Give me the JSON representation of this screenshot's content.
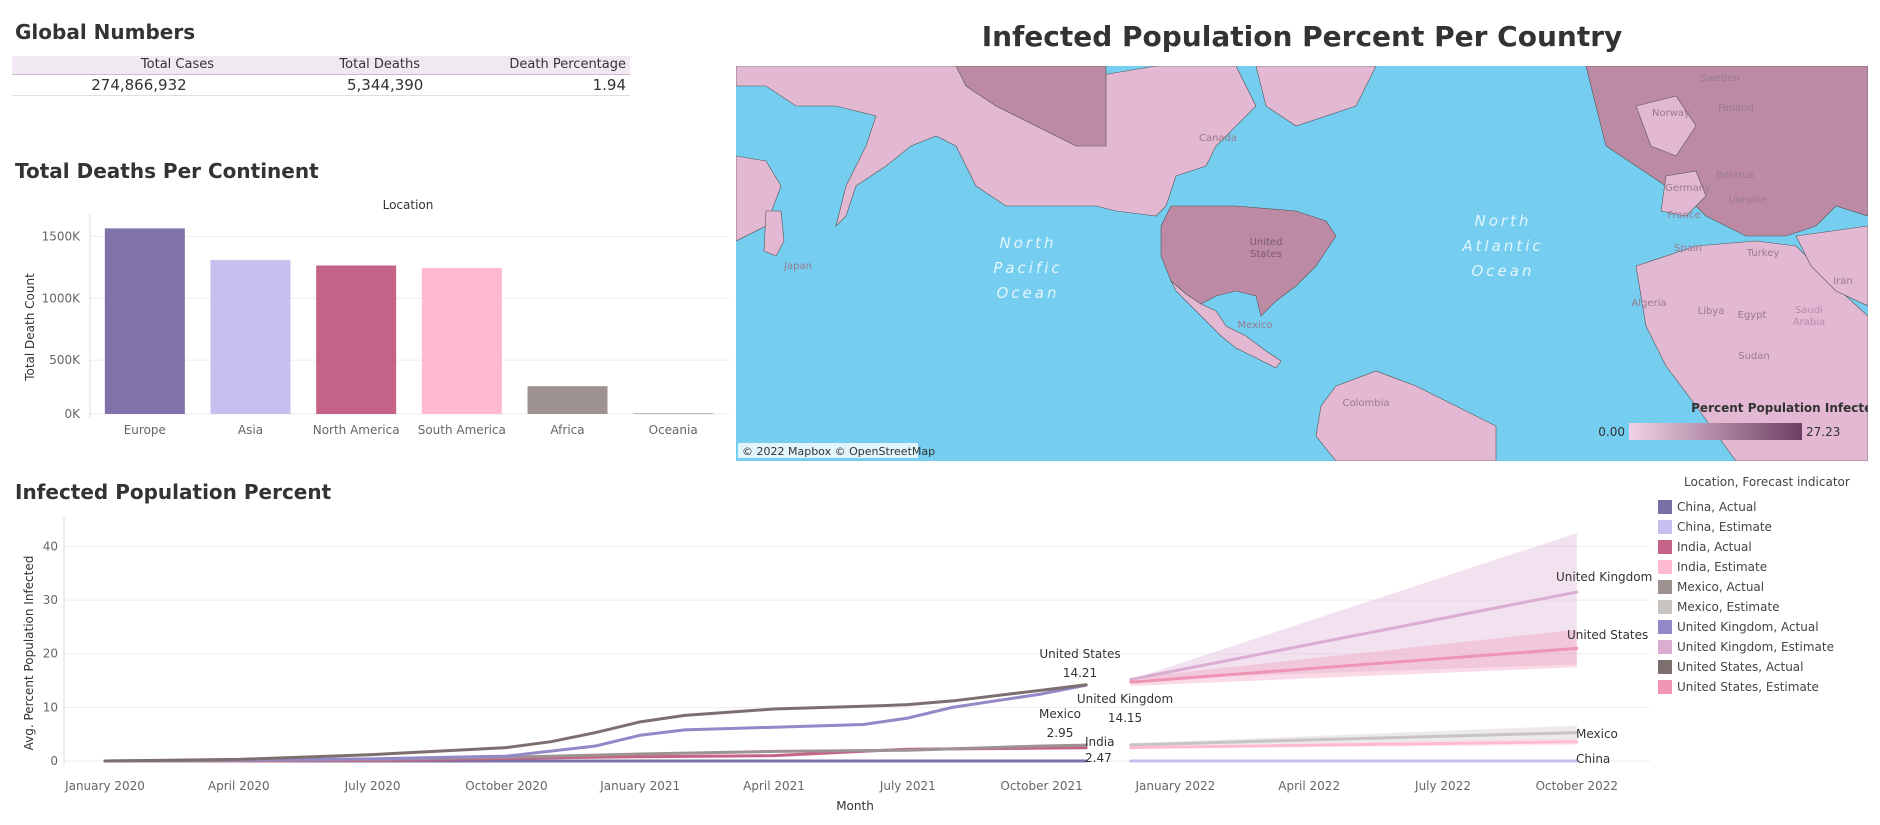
{
  "global": {
    "title": "Global Numbers",
    "headers": [
      "Total Cases",
      "Total Deaths",
      "Death Percentage"
    ],
    "values": [
      "274,866,932",
      "5,344,390",
      "1.94"
    ]
  },
  "map": {
    "title": "Infected Population Percent Per Country",
    "attribution": "© 2022 Mapbox © OpenStreetMap",
    "legend_title": "Percent Population Infected",
    "legend_min": "0.00",
    "legend_max": "27.23",
    "ocean_labels": [
      "North",
      "Pacific",
      "Ocean",
      "North",
      "Atlantic",
      "Ocean"
    ],
    "country_labels": [
      "Canada",
      "United States",
      "Mexico",
      "Japan",
      "Colombia",
      "Germany",
      "Ukraine",
      "France",
      "Spain",
      "Turkey",
      "Iran",
      "Algeria",
      "Libya",
      "Egypt",
      "Saudi Arabia",
      "Sudan",
      "Norway",
      "Finland",
      "Sweden",
      "Belarus"
    ],
    "colors": {
      "ocean": "#75cdef",
      "land": "#e2b8d2",
      "land_dark": "#bc8aa4",
      "border": "#555555"
    }
  },
  "bars": {
    "title": "Total Deaths Per Continent",
    "header": "Location",
    "ylabel": "Total Death Count",
    "ticks": [
      "1500K",
      "1000K",
      "500K",
      "0K"
    ]
  },
  "lines": {
    "title": "Infected Population Percent",
    "ylabel": "Avg. Percent Population Infected",
    "xlabel": "Month",
    "legend_title": "Location, Forecast indicator",
    "annotations": {
      "us_name": "United States",
      "us_value": "14.21",
      "uk_name": "United Kingdom",
      "uk_value": "14.15",
      "mx_name": "Mexico",
      "mx_value": "2.95",
      "in_name": "India",
      "in_value": "2.47",
      "end_uk": "United Kingdom",
      "end_us": "United States",
      "end_mx": "Mexico",
      "end_cn": "China"
    }
  },
  "chart_data": [
    {
      "type": "bar",
      "title": "Total Deaths Per Continent",
      "xlabel": "Location",
      "ylabel": "Total Death Count",
      "categories": [
        "Europe",
        "Asia",
        "North America",
        "South America",
        "Africa",
        "Oceania"
      ],
      "values": [
        1500000,
        1245000,
        1200000,
        1180000,
        225000,
        3000
      ],
      "colors": [
        "#8073a9",
        "#c6c0ef",
        "#c46387",
        "#ffbad2",
        "#9e9290",
        "#c0b8b6"
      ],
      "ylim": [
        0,
        1600000
      ],
      "grid": true
    },
    {
      "type": "line",
      "title": "Infected Population Percent",
      "xlabel": "Month",
      "ylabel": "Avg. Percent Population Infected",
      "x_ticks": [
        "January 2020",
        "April 2020",
        "July 2020",
        "October 2020",
        "January 2021",
        "April 2021",
        "July 2021",
        "October 2021",
        "January 2022",
        "April 2022",
        "July 2022",
        "October 2022"
      ],
      "y_ticks": [
        0,
        10,
        20,
        30,
        40
      ],
      "ylim": [
        0,
        44
      ],
      "grid": true,
      "legend_position": "right",
      "series": [
        {
          "name": "China, Actual",
          "color": "#7b6fa8",
          "x": [
            "2020-01",
            "2021-11"
          ],
          "y": [
            0.0,
            0.0
          ]
        },
        {
          "name": "China, Estimate",
          "color": "#c6c0ef",
          "x": [
            "2021-12",
            "2022-10"
          ],
          "y": [
            0.0,
            0.0
          ]
        },
        {
          "name": "India, Actual",
          "color": "#c46387",
          "x": [
            "2020-01",
            "2020-04",
            "2020-07",
            "2020-10",
            "2021-01",
            "2021-04",
            "2021-07",
            "2021-10",
            "2021-11"
          ],
          "y": [
            0.0,
            0.0,
            0.1,
            0.5,
            0.8,
            1.0,
            2.2,
            2.4,
            2.47
          ]
        },
        {
          "name": "India, Estimate",
          "color": "#ffbad2",
          "x": [
            "2021-12",
            "2022-10"
          ],
          "y": [
            2.5,
            3.6
          ]
        },
        {
          "name": "Mexico, Actual",
          "color": "#9e9290",
          "x": [
            "2020-01",
            "2020-04",
            "2020-07",
            "2020-10",
            "2021-01",
            "2021-04",
            "2021-07",
            "2021-10",
            "2021-11"
          ],
          "y": [
            0.0,
            0.1,
            0.3,
            0.7,
            1.3,
            1.8,
            2.0,
            2.8,
            2.95
          ]
        },
        {
          "name": "Mexico, Estimate",
          "color": "#c8c4c2",
          "x": [
            "2021-12",
            "2022-10"
          ],
          "y": [
            3.0,
            5.3
          ]
        },
        {
          "name": "United Kingdom, Actual",
          "color": "#9488c8",
          "x": [
            "2020-01",
            "2020-04",
            "2020-07",
            "2020-10",
            "2020-12",
            "2021-01",
            "2021-02",
            "2021-04",
            "2021-06",
            "2021-07",
            "2021-08",
            "2021-10",
            "2021-11"
          ],
          "y": [
            0.0,
            0.2,
            0.4,
            0.9,
            2.8,
            4.8,
            5.8,
            6.3,
            6.8,
            8.0,
            10.0,
            12.5,
            14.15
          ]
        },
        {
          "name": "United Kingdom, Estimate",
          "color": "#dbadd3",
          "x": [
            "2021-12",
            "2022-10"
          ],
          "y": [
            15.2,
            31.5
          ]
        },
        {
          "name": "United States, Actual",
          "color": "#7d6f6e",
          "x": [
            "2020-01",
            "2020-04",
            "2020-07",
            "2020-10",
            "2020-11",
            "2020-12",
            "2021-01",
            "2021-02",
            "2021-04",
            "2021-06",
            "2021-07",
            "2021-08",
            "2021-10",
            "2021-11"
          ],
          "y": [
            0.0,
            0.3,
            1.2,
            2.5,
            3.6,
            5.3,
            7.3,
            8.5,
            9.7,
            10.2,
            10.5,
            11.2,
            13.2,
            14.21
          ]
        },
        {
          "name": "United States, Estimate",
          "color": "#f094b6",
          "x": [
            "2021-12",
            "2022-10"
          ],
          "y": [
            14.7,
            21.0
          ]
        }
      ]
    }
  ]
}
